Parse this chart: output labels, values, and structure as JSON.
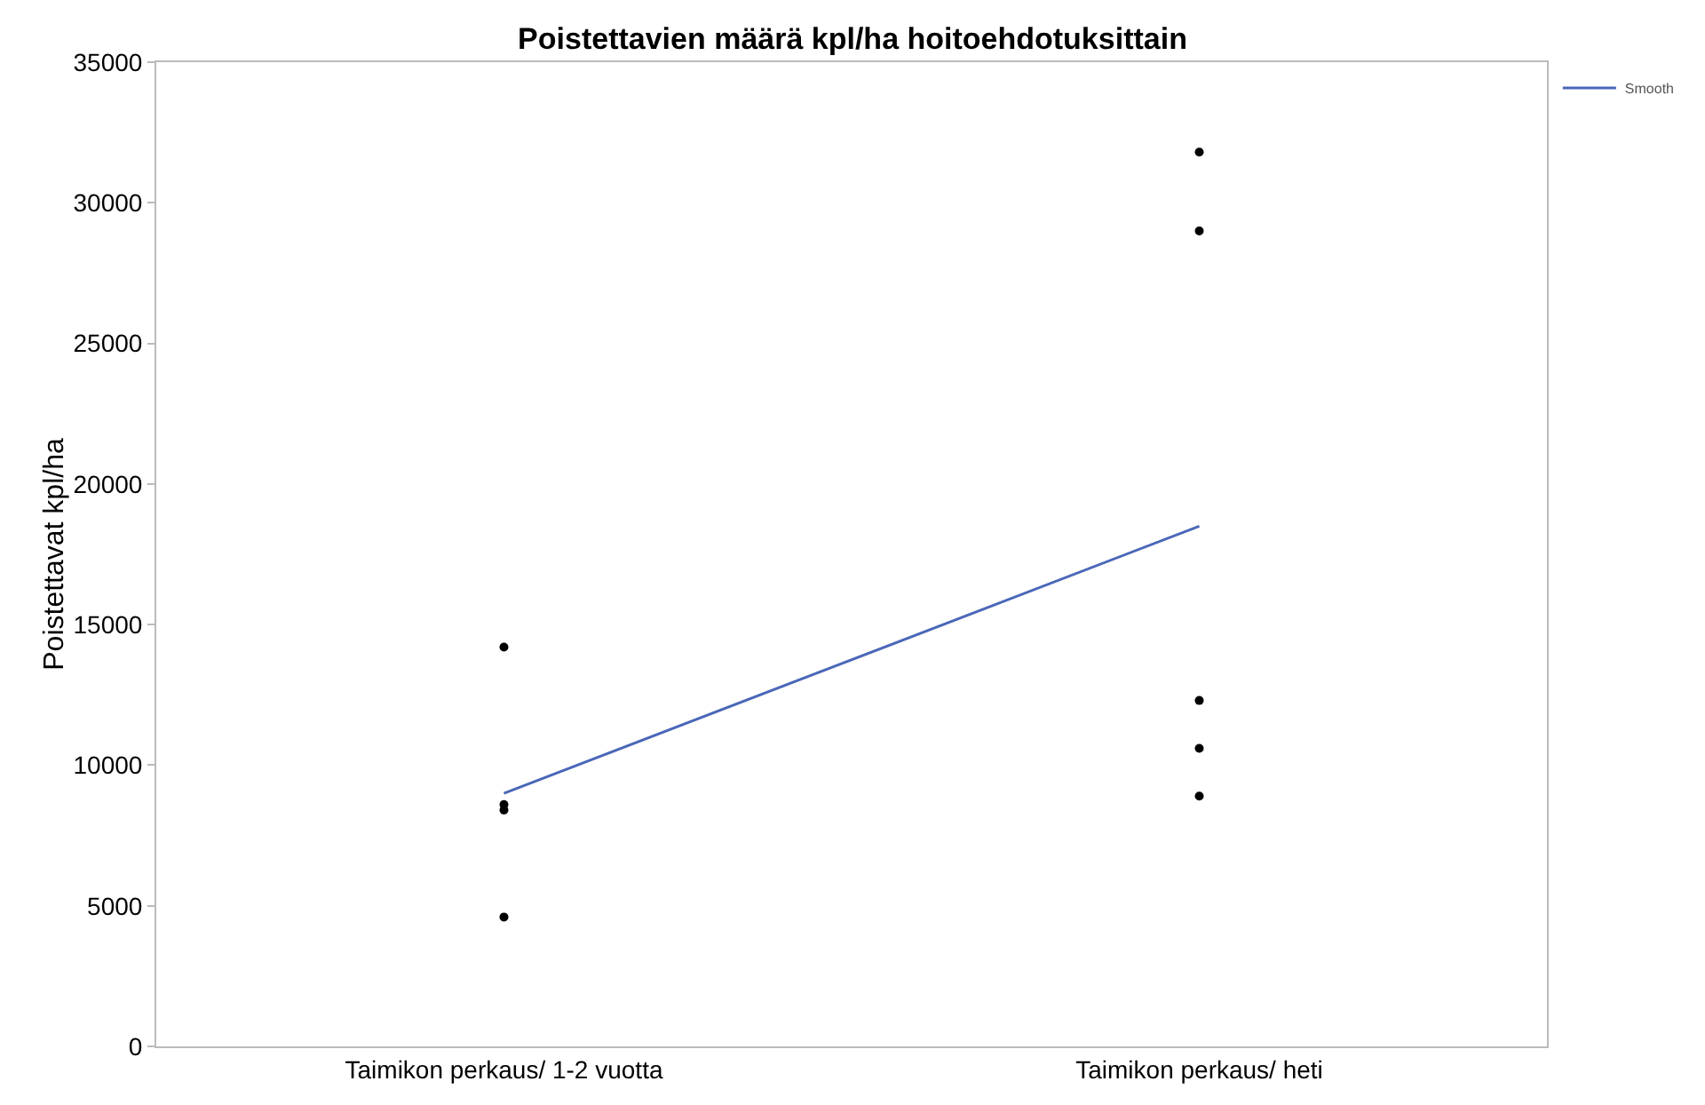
{
  "chart_data": {
    "type": "scatter",
    "title": "Poistettavien määrä kpl/ha hoitoehdotuksittain",
    "ylabel": "Poistettavat kpl/ha",
    "categories": [
      "Taimikon perkaus/ 1-2 vuotta",
      "Taimikon perkaus/ heti"
    ],
    "ylim": [
      0,
      35000
    ],
    "yticks": [
      0,
      5000,
      10000,
      15000,
      20000,
      25000,
      30000,
      35000
    ],
    "grid": false,
    "legend": "top right",
    "series": [
      {
        "marker": "circle",
        "color": "#000000",
        "x": [
          "Taimikon perkaus/ 1-2 vuotta",
          "Taimikon perkaus/ 1-2 vuotta",
          "Taimikon perkaus/ 1-2 vuotta",
          "Taimikon perkaus/ 1-2 vuotta",
          "Taimikon perkaus/ heti",
          "Taimikon perkaus/ heti",
          "Taimikon perkaus/ heti",
          "Taimikon perkaus/ heti",
          "Taimikon perkaus/ heti"
        ],
        "values": [
          14200,
          8400,
          8600,
          4600,
          31800,
          29000,
          12300,
          10600,
          8900
        ]
      },
      {
        "type": "line",
        "name": "Smooth",
        "color": "#4a67b8",
        "line_style": "solid",
        "values": [
          9000,
          18500
        ]
      }
    ]
  }
}
